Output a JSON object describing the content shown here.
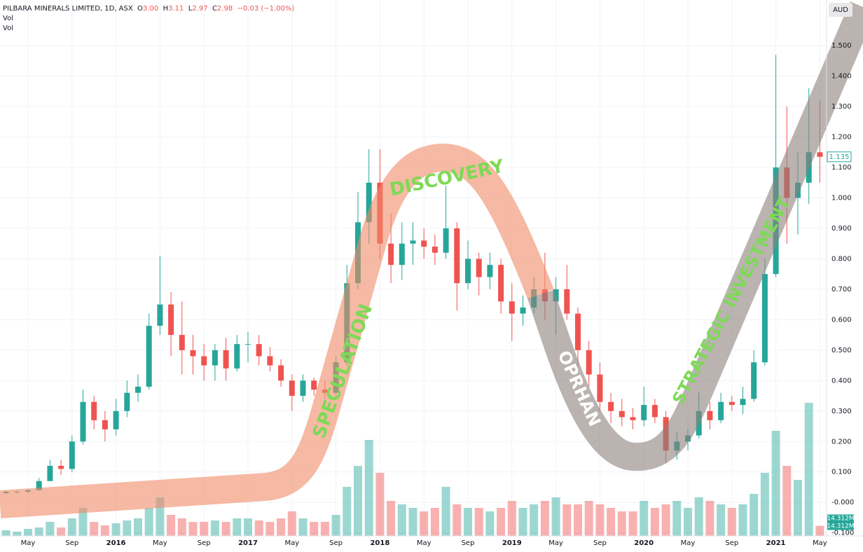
{
  "chart_data": {
    "type": "candlestick",
    "title": "PILBARA MINERALS LIMITED, 1D, ASX",
    "legend_ohlc": [
      {
        "key": "O",
        "value": "3.00"
      },
      {
        "key": "H",
        "value": "3.11"
      },
      {
        "key": "L",
        "value": "2.97"
      },
      {
        "key": "C",
        "value": "2.98"
      }
    ],
    "legend_change": "−0.03 (−1.00%)",
    "indicator_labels": [
      "Vol",
      "Vol"
    ],
    "currency": "AUD",
    "last_price_label": "1.135",
    "up_color": "#26a69a",
    "down_color": "#ef5350",
    "categories": [
      null,
      null,
      "May",
      null,
      null,
      null,
      "Sep",
      null,
      null,
      null,
      "2016",
      null,
      null,
      null,
      "May",
      null,
      null,
      null,
      "Sep",
      null,
      null,
      null,
      "2017",
      null,
      null,
      null,
      "May",
      null,
      null,
      null,
      "Sep",
      null,
      null,
      null,
      "2018",
      null,
      null,
      null,
      "May",
      null,
      null,
      null,
      "Sep",
      null,
      null,
      null,
      "2019",
      null,
      null,
      null,
      "May",
      null,
      null,
      null,
      "Sep",
      null,
      null,
      null,
      "2020",
      null,
      null,
      null,
      "May",
      null,
      null,
      null,
      "Sep",
      null,
      null,
      null,
      "2021",
      null,
      null,
      null,
      "May"
    ],
    "open": [
      0.03,
      0.035,
      0.035,
      0.04,
      0.07,
      0.12,
      0.11,
      0.2,
      0.33,
      0.27,
      0.24,
      0.3,
      0.36,
      0.38,
      0.58,
      0.65,
      0.55,
      0.5,
      0.48,
      0.45,
      0.5,
      0.44,
      0.52,
      0.52,
      0.48,
      0.45,
      0.4,
      0.35,
      0.4,
      0.37,
      0.36,
      0.46,
      0.72,
      0.92,
      1.05,
      0.85,
      0.78,
      0.85,
      0.86,
      0.84,
      0.82,
      0.9,
      0.72,
      0.8,
      0.74,
      0.78,
      0.66,
      0.62,
      0.64,
      0.7,
      0.66,
      0.7,
      0.62,
      0.5,
      0.42,
      0.33,
      0.3,
      0.28,
      0.27,
      0.32,
      0.28,
      0.17,
      0.2,
      0.22,
      0.3,
      0.27,
      0.33,
      0.32,
      0.34,
      0.46,
      0.75,
      1.1,
      1.0,
      1.05,
      1.15
    ],
    "high": [
      0.04,
      0.04,
      0.045,
      0.08,
      0.14,
      0.14,
      0.22,
      0.37,
      0.35,
      0.3,
      0.34,
      0.4,
      0.42,
      0.62,
      0.81,
      0.69,
      0.66,
      0.55,
      0.52,
      0.52,
      0.54,
      0.55,
      0.56,
      0.55,
      0.51,
      0.47,
      0.42,
      0.42,
      0.41,
      0.4,
      0.48,
      0.78,
      1.02,
      1.16,
      1.16,
      0.95,
      0.92,
      0.92,
      0.9,
      0.88,
      1.04,
      0.92,
      0.86,
      0.82,
      0.82,
      0.8,
      0.72,
      0.68,
      0.74,
      0.82,
      0.74,
      0.78,
      0.64,
      0.53,
      0.46,
      0.36,
      0.34,
      0.31,
      0.38,
      0.34,
      0.3,
      0.23,
      0.24,
      0.36,
      0.33,
      0.36,
      0.35,
      0.38,
      0.5,
      0.8,
      1.47,
      1.3,
      1.15,
      1.36,
      1.32
    ],
    "low": [
      0.03,
      0.03,
      0.03,
      0.04,
      0.07,
      0.09,
      0.1,
      0.19,
      0.24,
      0.2,
      0.22,
      0.28,
      0.33,
      0.37,
      0.55,
      0.48,
      0.42,
      0.42,
      0.4,
      0.4,
      0.4,
      0.43,
      0.46,
      0.45,
      0.43,
      0.38,
      0.3,
      0.33,
      0.35,
      0.34,
      0.35,
      0.45,
      0.7,
      0.85,
      0.8,
      0.72,
      0.73,
      0.78,
      0.8,
      0.78,
      0.8,
      0.63,
      0.7,
      0.68,
      0.7,
      0.62,
      0.53,
      0.58,
      0.62,
      0.6,
      0.55,
      0.6,
      0.45,
      0.38,
      0.3,
      0.26,
      0.25,
      0.24,
      0.25,
      0.26,
      0.13,
      0.14,
      0.17,
      0.21,
      0.24,
      0.26,
      0.3,
      0.29,
      0.33,
      0.45,
      0.74,
      0.85,
      0.88,
      0.98,
      1.05
    ],
    "close": [
      0.035,
      0.035,
      0.04,
      0.07,
      0.12,
      0.11,
      0.2,
      0.33,
      0.27,
      0.24,
      0.3,
      0.36,
      0.38,
      0.58,
      0.65,
      0.55,
      0.5,
      0.48,
      0.45,
      0.5,
      0.44,
      0.52,
      0.52,
      0.48,
      0.45,
      0.4,
      0.35,
      0.4,
      0.37,
      0.36,
      0.46,
      0.72,
      0.92,
      1.05,
      0.85,
      0.78,
      0.85,
      0.86,
      0.84,
      0.82,
      0.9,
      0.72,
      0.8,
      0.74,
      0.78,
      0.66,
      0.62,
      0.64,
      0.7,
      0.66,
      0.7,
      0.62,
      0.5,
      0.42,
      0.33,
      0.3,
      0.28,
      0.27,
      0.32,
      0.28,
      0.17,
      0.2,
      0.22,
      0.3,
      0.27,
      0.33,
      0.32,
      0.34,
      0.46,
      0.75,
      1.1,
      1.0,
      1.05,
      1.15,
      1.135
    ],
    "ylim": [
      -0.11,
      1.65
    ],
    "yticks": [
      {
        "value": -0.1,
        "label": "-0.100"
      },
      {
        "value": 0,
        "label": "-0.000"
      },
      {
        "value": 0.1,
        "label": "0.100"
      },
      {
        "value": 0.2,
        "label": "0.200"
      },
      {
        "value": 0.3,
        "label": "0.300"
      },
      {
        "value": 0.4,
        "label": "0.400"
      },
      {
        "value": 0.5,
        "label": "0.500"
      },
      {
        "value": 0.6,
        "label": "0.600"
      },
      {
        "value": 0.7,
        "label": "0.700"
      },
      {
        "value": 0.8,
        "label": "0.800"
      },
      {
        "value": 0.9,
        "label": "0.900"
      },
      {
        "value": 1.0,
        "label": "1.000"
      },
      {
        "value": 1.1,
        "label": "1.100"
      },
      {
        "value": 1.2,
        "label": "1.200"
      },
      {
        "value": 1.3,
        "label": "1.300"
      },
      {
        "value": 1.4,
        "label": "1.400"
      },
      {
        "value": 1.5,
        "label": "1.500"
      }
    ],
    "volume": {
      "name": "Vol",
      "vlim": [
        0,
        200
      ],
      "values": [
        8,
        6,
        10,
        12,
        20,
        12,
        25,
        40,
        20,
        15,
        18,
        22,
        25,
        40,
        55,
        30,
        25,
        20,
        20,
        22,
        20,
        25,
        25,
        22,
        20,
        25,
        35,
        25,
        20,
        20,
        30,
        70,
        100,
        137,
        90,
        50,
        45,
        40,
        35,
        40,
        70,
        45,
        40,
        40,
        35,
        40,
        50,
        40,
        45,
        50,
        55,
        45,
        45,
        50,
        45,
        40,
        35,
        35,
        50,
        40,
        45,
        50,
        40,
        55,
        50,
        45,
        40,
        45,
        60,
        90,
        150,
        100,
        80,
        190,
        14.312
      ],
      "last_value_label": "14.312M"
    },
    "annotations": [
      "SPECULATION",
      "DISCOVERY",
      "OPRHAN",
      "STRATEGIC INVESTMENT"
    ],
    "grid": true
  }
}
